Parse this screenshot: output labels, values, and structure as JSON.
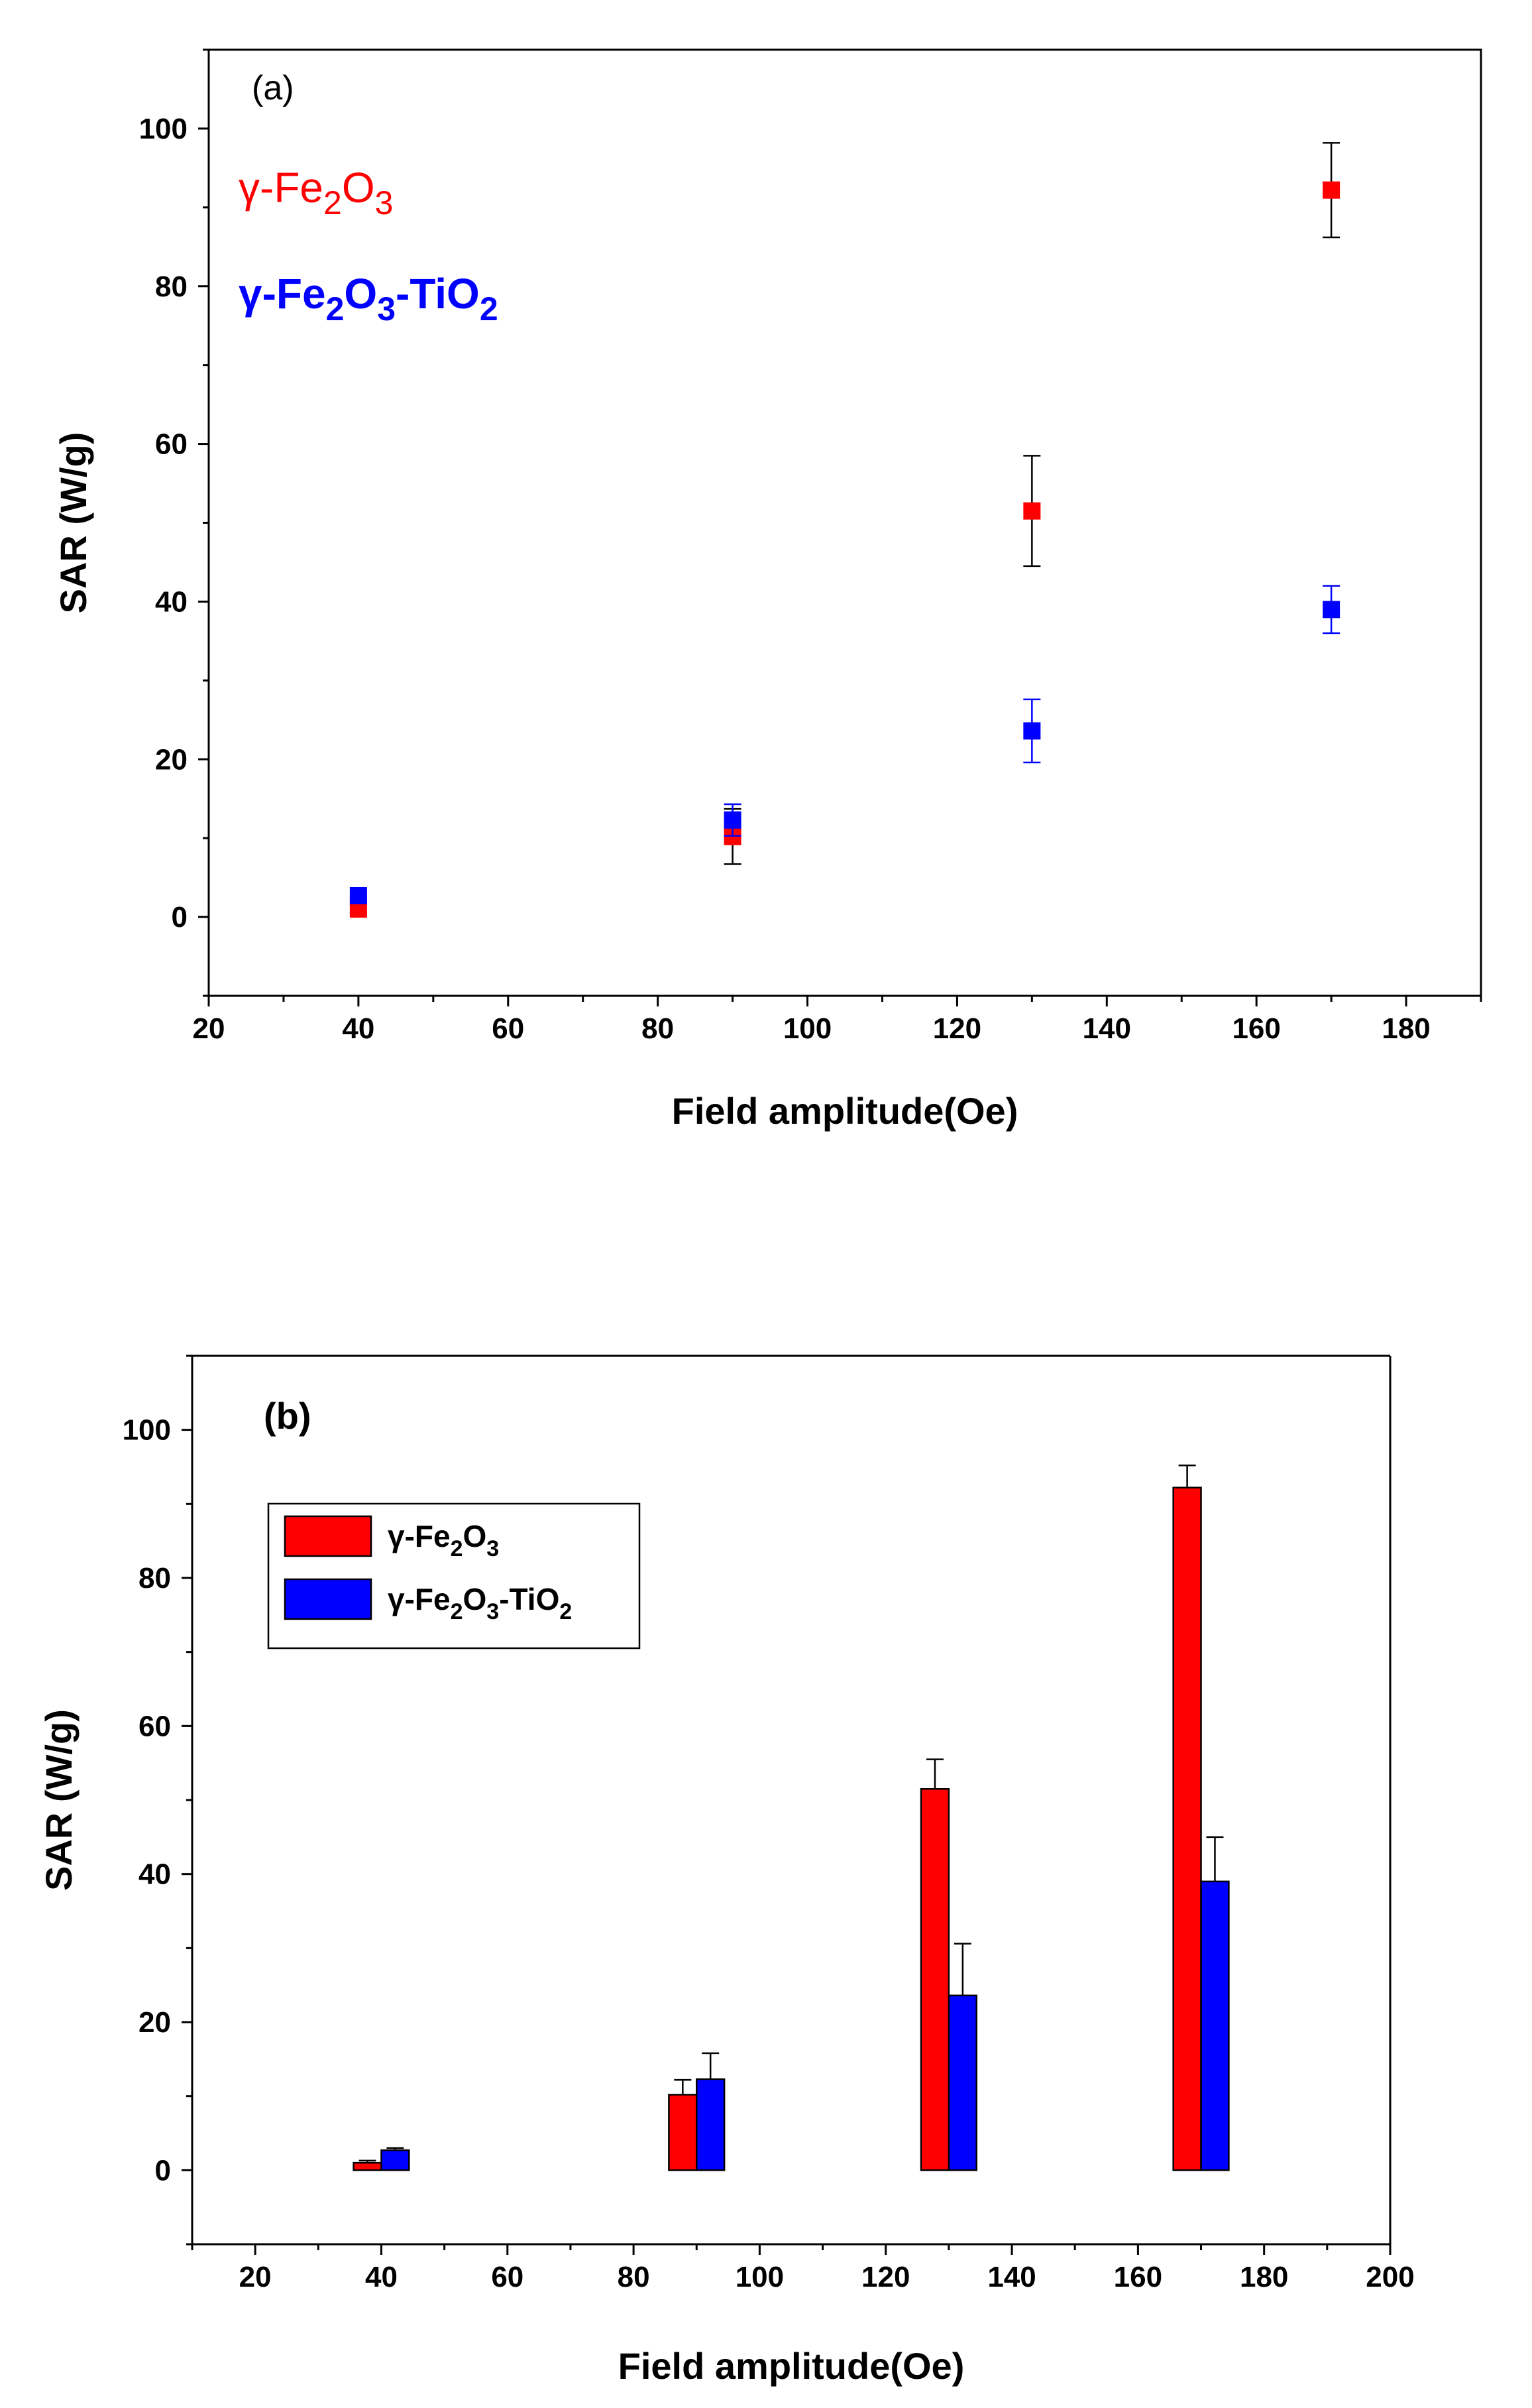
{
  "colors": {
    "red": "#ff0000",
    "blue": "#0000ff",
    "axis": "#000000",
    "errorbar_a_red": "#000000",
    "errorbar_a_blue": "#0000ff"
  },
  "chart_data": [
    {
      "type": "scatter",
      "panel_label": "(a)",
      "xlabel": "Field amplitude(Oe)",
      "ylabel": "SAR (W/g)",
      "xlim": [
        20,
        190
      ],
      "ylim": [
        -10,
        110
      ],
      "xticks": [
        20,
        40,
        60,
        80,
        100,
        120,
        140,
        160,
        180
      ],
      "yticks": [
        0,
        20,
        40,
        60,
        80,
        100
      ],
      "xtick_labels": [
        "20",
        "40",
        "60",
        "80",
        "100",
        "120",
        "140",
        "160",
        "180"
      ],
      "ytick_labels": [
        "0",
        "20",
        "40",
        "60",
        "80",
        "100"
      ],
      "legend": [
        {
          "label": "γ-Fe2O3",
          "prefix": "γ-Fe",
          "sub1": "2",
          "mid": "O",
          "sub2": "3",
          "suffix": "",
          "color": "#ff0000"
        },
        {
          "label": "γ-Fe2O3-TiO2",
          "prefix": "γ-Fe",
          "sub1": "2",
          "mid": "O",
          "sub2": "3",
          "suffix": "-TiO",
          "sub3": "2",
          "color": "#0000ff"
        }
      ],
      "series": [
        {
          "name": "γ-Fe2O3",
          "color": "#ff0000",
          "x": [
            40,
            90,
            130,
            170
          ],
          "y": [
            1.0,
            10.2,
            51.5,
            92.2
          ],
          "err": [
            0.5,
            3.5,
            7.0,
            6.0
          ]
        },
        {
          "name": "γ-Fe2O3-TiO2",
          "color": "#0000ff",
          "x": [
            40,
            90,
            130,
            170
          ],
          "y": [
            2.7,
            12.3,
            23.6,
            39.0
          ],
          "err": [
            0.4,
            2.0,
            4.0,
            3.0
          ]
        }
      ]
    },
    {
      "type": "bar",
      "panel_label": "(b)",
      "xlabel": "Field amplitude(Oe)",
      "ylabel": "SAR (W/g)",
      "xlim": [
        10,
        200
      ],
      "ylim": [
        -10,
        110
      ],
      "xticks": [
        20,
        40,
        60,
        80,
        100,
        120,
        140,
        160,
        180,
        200
      ],
      "yticks": [
        0,
        20,
        40,
        60,
        80,
        100
      ],
      "xtick_labels": [
        "20",
        "40",
        "60",
        "80",
        "100",
        "120",
        "140",
        "160",
        "180",
        "200"
      ],
      "ytick_labels": [
        "0",
        "20",
        "40",
        "60",
        "80",
        "100"
      ],
      "bar_width": 4.4,
      "legend": [
        {
          "label": "γ-Fe2O3",
          "prefix": "γ-Fe",
          "sub1": "2",
          "mid": "O",
          "sub2": "3",
          "suffix": "",
          "color": "#ff0000"
        },
        {
          "label": "γ-Fe2O3-TiO2",
          "prefix": "γ-Fe",
          "sub1": "2",
          "mid": "O",
          "sub2": "3",
          "suffix": "-TiO",
          "sub3": "2",
          "color": "#0000ff"
        }
      ],
      "categories": [
        40,
        90,
        130,
        170
      ],
      "series": [
        {
          "name": "γ-Fe2O3",
          "color": "#ff0000",
          "x": [
            37.8,
            87.8,
            127.8,
            167.8
          ],
          "values": [
            1.0,
            10.2,
            51.5,
            92.2
          ],
          "err": [
            0.3,
            2.0,
            4.0,
            3.0
          ]
        },
        {
          "name": "γ-Fe2O3-TiO2",
          "color": "#0000ff",
          "x": [
            42.2,
            92.2,
            132.2,
            172.2
          ],
          "values": [
            2.7,
            12.3,
            23.6,
            39.0
          ],
          "err": [
            0.3,
            3.5,
            7.0,
            6.0
          ]
        }
      ]
    }
  ]
}
